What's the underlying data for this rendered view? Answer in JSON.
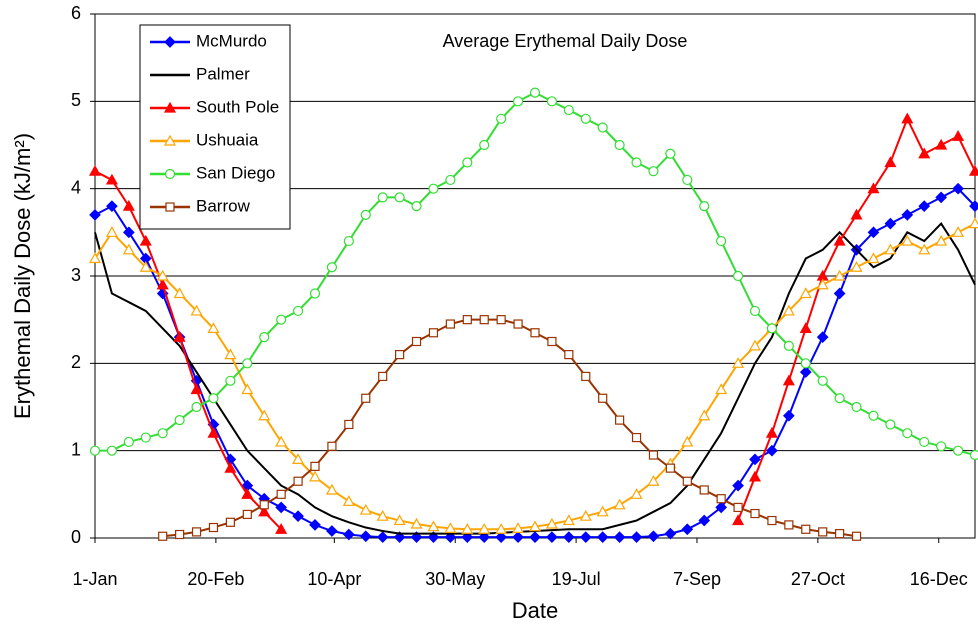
{
  "chart_data": {
    "type": "line",
    "title": "Average Erythemal Daily Dose",
    "x_label": "Date",
    "y_label": "Erythemal Daily Dose (kJ/m²)",
    "xlim": [
      1,
      365
    ],
    "xticks": [
      {
        "value": 1,
        "label": "1-Jan"
      },
      {
        "value": 51,
        "label": "20-Feb"
      },
      {
        "value": 100,
        "label": "10-Apr"
      },
      {
        "value": 150,
        "label": "30-May"
      },
      {
        "value": 200,
        "label": "19-Jul"
      },
      {
        "value": 250,
        "label": "7-Sep"
      },
      {
        "value": 300,
        "label": "27-Oct"
      },
      {
        "value": 350,
        "label": "16-Dec"
      }
    ],
    "ylim": [
      0,
      6
    ],
    "yticks": [
      0,
      1,
      2,
      3,
      4,
      5,
      6
    ],
    "grid": true,
    "legend": "upper left",
    "x": [
      1,
      8,
      15,
      22,
      29,
      36,
      43,
      50,
      57,
      64,
      71,
      78,
      85,
      92,
      99,
      106,
      113,
      120,
      127,
      134,
      141,
      148,
      155,
      162,
      169,
      176,
      183,
      190,
      197,
      204,
      211,
      218,
      225,
      232,
      239,
      246,
      253,
      260,
      267,
      274,
      281,
      288,
      295,
      302,
      309,
      316,
      323,
      330,
      337,
      344,
      351,
      358,
      365
    ],
    "series": [
      {
        "name": "McMurdo",
        "color": "#0000ff",
        "marker": "diamond",
        "values": [
          3.7,
          3.8,
          3.5,
          3.2,
          2.8,
          2.3,
          1.8,
          1.3,
          0.9,
          0.6,
          0.45,
          0.35,
          0.25,
          0.15,
          0.08,
          0.04,
          0.02,
          0.01,
          0.01,
          0.01,
          0.01,
          0.01,
          0.01,
          0.01,
          0.01,
          0.01,
          0.01,
          0.01,
          0.01,
          0.01,
          0.01,
          0.01,
          0.01,
          0.02,
          0.05,
          0.1,
          0.2,
          0.35,
          0.6,
          0.9,
          1.0,
          1.4,
          1.9,
          2.3,
          2.8,
          3.3,
          3.5,
          3.6,
          3.7,
          3.8,
          3.9,
          4.0,
          3.8
        ]
      },
      {
        "name": "Palmer",
        "color": "#000000",
        "marker": "none",
        "values": [
          3.5,
          2.8,
          2.7,
          2.6,
          2.4,
          2.2,
          1.9,
          1.6,
          1.3,
          1.0,
          0.8,
          0.6,
          0.5,
          0.35,
          0.25,
          0.18,
          0.12,
          0.08,
          0.05,
          0.05,
          0.05,
          0.05,
          0.05,
          0.05,
          0.06,
          0.07,
          0.08,
          0.09,
          0.1,
          0.1,
          0.1,
          0.15,
          0.2,
          0.3,
          0.4,
          0.6,
          0.9,
          1.2,
          1.6,
          2.0,
          2.3,
          2.8,
          3.2,
          3.3,
          3.5,
          3.3,
          3.1,
          3.2,
          3.5,
          3.4,
          3.6,
          3.3,
          2.9
        ]
      },
      {
        "name": "South Pole",
        "color": "#ff0000",
        "marker": "triangle",
        "values": [
          4.2,
          4.1,
          3.8,
          3.4,
          2.9,
          2.3,
          1.7,
          1.2,
          0.8,
          0.5,
          0.3,
          0.1,
          null,
          null,
          null,
          null,
          null,
          null,
          null,
          null,
          null,
          null,
          null,
          null,
          null,
          null,
          null,
          null,
          null,
          null,
          null,
          null,
          null,
          null,
          null,
          null,
          null,
          null,
          0.2,
          0.7,
          1.2,
          1.8,
          2.4,
          3.0,
          3.4,
          3.7,
          4.0,
          4.3,
          4.8,
          4.4,
          4.5,
          4.6,
          4.2
        ]
      },
      {
        "name": "Ushuaia",
        "color": "#ffa500",
        "marker": "triangle-open",
        "values": [
          3.2,
          3.5,
          3.3,
          3.1,
          3.0,
          2.8,
          2.6,
          2.4,
          2.1,
          1.7,
          1.4,
          1.1,
          0.9,
          0.7,
          0.55,
          0.42,
          0.32,
          0.25,
          0.2,
          0.16,
          0.13,
          0.11,
          0.1,
          0.1,
          0.1,
          0.11,
          0.13,
          0.16,
          0.2,
          0.25,
          0.3,
          0.38,
          0.5,
          0.65,
          0.85,
          1.1,
          1.4,
          1.7,
          2.0,
          2.2,
          2.4,
          2.6,
          2.8,
          2.9,
          3.0,
          3.1,
          3.2,
          3.3,
          3.4,
          3.3,
          3.4,
          3.5,
          3.6
        ]
      },
      {
        "name": "San Diego",
        "color": "#33dd33",
        "marker": "circle-open",
        "values": [
          1.0,
          1.0,
          1.1,
          1.15,
          1.2,
          1.35,
          1.5,
          1.6,
          1.8,
          2.0,
          2.3,
          2.5,
          2.6,
          2.8,
          3.1,
          3.4,
          3.7,
          3.9,
          3.9,
          3.8,
          4.0,
          4.1,
          4.3,
          4.5,
          4.8,
          5.0,
          5.1,
          5.0,
          4.9,
          4.8,
          4.7,
          4.5,
          4.3,
          4.2,
          4.4,
          4.1,
          3.8,
          3.4,
          3.0,
          2.6,
          2.4,
          2.2,
          2.0,
          1.8,
          1.6,
          1.5,
          1.4,
          1.3,
          1.2,
          1.1,
          1.05,
          1.0,
          0.95
        ]
      },
      {
        "name": "Barrow",
        "color": "#993300",
        "marker": "square-open",
        "values": [
          null,
          null,
          null,
          null,
          0.02,
          0.04,
          0.07,
          0.12,
          0.18,
          0.27,
          0.38,
          0.5,
          0.65,
          0.82,
          1.05,
          1.3,
          1.6,
          1.85,
          2.1,
          2.25,
          2.35,
          2.45,
          2.5,
          2.5,
          2.5,
          2.45,
          2.35,
          2.25,
          2.1,
          1.85,
          1.6,
          1.35,
          1.15,
          0.95,
          0.8,
          0.65,
          0.55,
          0.45,
          0.35,
          0.28,
          0.2,
          0.15,
          0.1,
          0.07,
          0.05,
          0.02,
          null,
          null,
          null,
          null,
          null,
          null,
          null
        ]
      }
    ]
  }
}
